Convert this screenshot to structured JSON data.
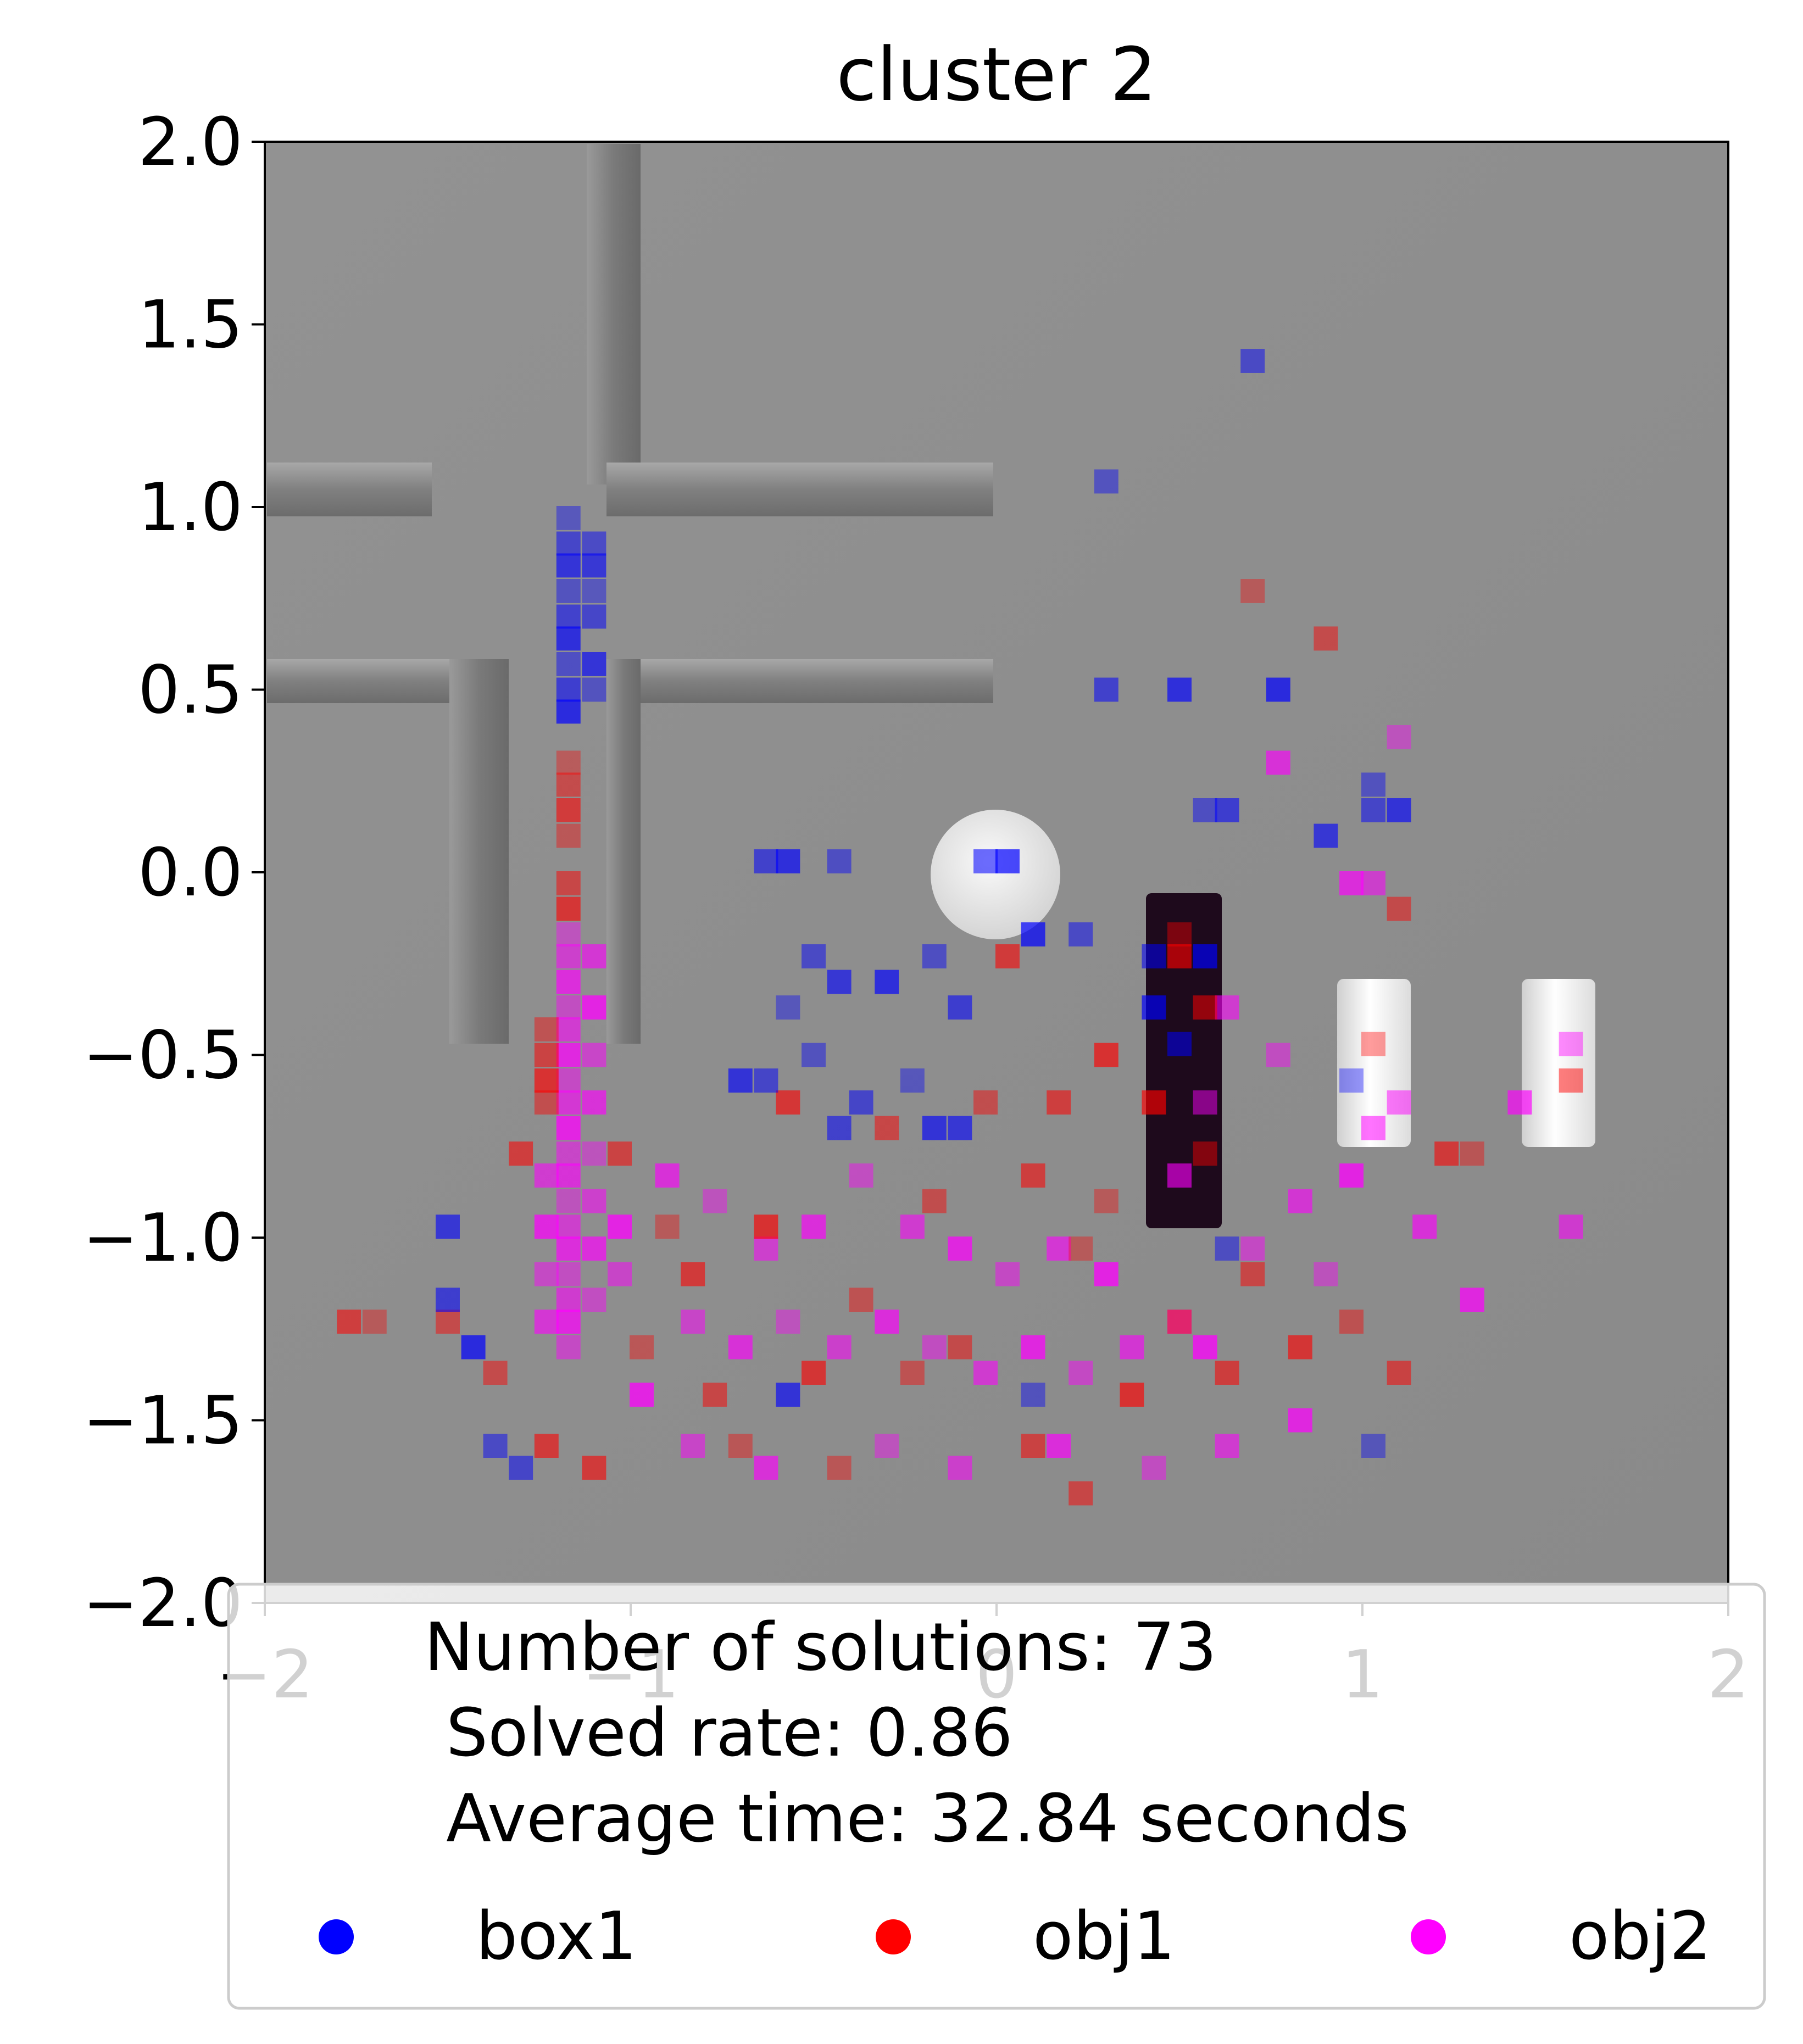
{
  "chart_data": {
    "type": "heatmap",
    "title": "cluster 2",
    "xlabel": "",
    "ylabel": "",
    "xlim": [
      -2,
      2
    ],
    "ylim": [
      -2,
      2
    ],
    "x_ticks": [
      "−2",
      "−1",
      "0",
      "1",
      "2"
    ],
    "y_ticks": [
      "2.0",
      "1.5",
      "1.0",
      "0.5",
      "0.0",
      "−0.5",
      "−1.0",
      "−1.5",
      "−2.0"
    ],
    "x_tick_values": [
      -2,
      -1,
      0,
      1,
      2
    ],
    "y_tick_values": [
      2.0,
      1.5,
      1.0,
      0.5,
      0.0,
      -0.5,
      -1.0,
      -1.5,
      -2.0
    ],
    "grid": false,
    "legend_position": "bottom",
    "summary": {
      "solutions": "Number of solutions: 73",
      "rate": "Solved rate: 0.86",
      "time": "Average time: 32.84 seconds"
    },
    "series": [
      {
        "name": "box1",
        "color": "#0000ff"
      },
      {
        "name": "obj1",
        "color": "#ff0000"
      },
      {
        "name": "obj2",
        "color": "#ff00ff"
      }
    ],
    "heatmap_cell_size": 0.066,
    "box1_cells": [
      [
        -1.17,
        0.97
      ],
      [
        -1.17,
        0.9
      ],
      [
        -1.17,
        0.84
      ],
      [
        -1.17,
        0.77
      ],
      [
        -1.17,
        0.7
      ],
      [
        -1.17,
        0.64
      ],
      [
        -1.17,
        0.57
      ],
      [
        -1.17,
        0.5
      ],
      [
        -1.17,
        0.44
      ],
      [
        -1.1,
        0.9
      ],
      [
        -1.1,
        0.84
      ],
      [
        -1.1,
        0.77
      ],
      [
        -1.1,
        0.7
      ],
      [
        -1.1,
        0.57
      ],
      [
        -1.1,
        0.5
      ],
      [
        -0.63,
        0.03
      ],
      [
        -0.57,
        0.03
      ],
      [
        -0.43,
        0.03
      ],
      [
        -0.03,
        0.03
      ],
      [
        0.03,
        0.03
      ],
      [
        -0.5,
        -0.23
      ],
      [
        -0.43,
        -0.3
      ],
      [
        -0.57,
        -0.37
      ],
      [
        -0.63,
        -0.57
      ],
      [
        -0.7,
        -0.57
      ],
      [
        -0.5,
        -0.5
      ],
      [
        -0.43,
        -0.7
      ],
      [
        -0.3,
        -0.3
      ],
      [
        -0.17,
        -0.23
      ],
      [
        -0.1,
        -0.37
      ],
      [
        0.1,
        -0.17
      ],
      [
        0.23,
        -0.17
      ],
      [
        -0.1,
        -0.7
      ],
      [
        -0.23,
        -0.57
      ],
      [
        -0.37,
        -0.63
      ],
      [
        -0.17,
        -0.7
      ],
      [
        0.3,
        1.07
      ],
      [
        0.3,
        0.5
      ],
      [
        0.5,
        0.5
      ],
      [
        0.57,
        0.17
      ],
      [
        0.63,
        0.17
      ],
      [
        0.77,
        0.5
      ],
      [
        0.7,
        1.4
      ],
      [
        0.9,
        0.1
      ],
      [
        0.97,
        -0.57
      ],
      [
        1.03,
        0.17
      ],
      [
        1.1,
        0.17
      ],
      [
        1.03,
        0.24
      ],
      [
        0.5,
        -0.47
      ],
      [
        0.43,
        -0.37
      ],
      [
        0.63,
        -1.03
      ],
      [
        -1.5,
        -1.17
      ],
      [
        -1.43,
        -1.3
      ],
      [
        -1.37,
        -1.57
      ],
      [
        -1.5,
        -0.97
      ],
      [
        1.03,
        -1.57
      ],
      [
        -1.3,
        -1.63
      ],
      [
        -0.57,
        -1.43
      ],
      [
        0.1,
        -1.43
      ],
      [
        0.43,
        -0.23
      ],
      [
        0.57,
        -0.23
      ]
    ],
    "obj1_cells": [
      [
        -1.17,
        0.3
      ],
      [
        -1.17,
        0.24
      ],
      [
        -1.17,
        0.17
      ],
      [
        -1.17,
        0.1
      ],
      [
        -1.17,
        -0.03
      ],
      [
        -1.17,
        -0.1
      ],
      [
        -1.23,
        -0.43
      ],
      [
        -1.23,
        -0.5
      ],
      [
        -1.23,
        -0.57
      ],
      [
        -1.23,
        -0.63
      ],
      [
        -1.3,
        -0.77
      ],
      [
        0.7,
        0.77
      ],
      [
        0.9,
        0.64
      ],
      [
        0.03,
        -0.23
      ],
      [
        1.03,
        -0.47
      ],
      [
        1.57,
        -0.57
      ],
      [
        0.5,
        -0.23
      ],
      [
        0.5,
        -0.17
      ],
      [
        0.57,
        -0.37
      ],
      [
        0.43,
        -0.63
      ],
      [
        0.57,
        -0.77
      ],
      [
        -1.77,
        -1.23
      ],
      [
        -1.7,
        -1.23
      ],
      [
        -1.5,
        -1.23
      ],
      [
        -1.23,
        -1.57
      ],
      [
        -0.7,
        -1.57
      ],
      [
        -0.3,
        -0.7
      ],
      [
        -0.57,
        -0.63
      ],
      [
        -0.37,
        -1.17
      ],
      [
        0.1,
        -1.57
      ],
      [
        0.37,
        -1.43
      ],
      [
        0.5,
        -1.23
      ],
      [
        0.63,
        -1.37
      ],
      [
        0.23,
        -1.03
      ],
      [
        -0.1,
        -1.3
      ],
      [
        -0.83,
        -1.1
      ],
      [
        -0.97,
        -1.3
      ],
      [
        -0.77,
        -1.43
      ],
      [
        -0.5,
        -1.37
      ],
      [
        -0.23,
        -1.37
      ],
      [
        -1.03,
        -0.77
      ],
      [
        -0.63,
        -0.97
      ],
      [
        -0.17,
        -0.9
      ],
      [
        0.1,
        -0.83
      ],
      [
        0.3,
        -0.9
      ],
      [
        1.1,
        -0.1
      ],
      [
        1.23,
        -0.77
      ],
      [
        1.3,
        -0.77
      ],
      [
        0.7,
        -1.1
      ],
      [
        0.83,
        -1.3
      ],
      [
        0.97,
        -1.23
      ],
      [
        1.1,
        -1.37
      ],
      [
        0.3,
        -0.5
      ],
      [
        -0.03,
        -0.63
      ],
      [
        0.17,
        -0.63
      ],
      [
        -0.9,
        -0.97
      ],
      [
        -1.37,
        -1.37
      ],
      [
        -1.1,
        -1.63
      ],
      [
        -0.43,
        -1.63
      ],
      [
        0.23,
        -1.7
      ]
    ],
    "obj2_cells": [
      [
        -1.17,
        -0.17
      ],
      [
        -1.17,
        -0.23
      ],
      [
        -1.17,
        -0.3
      ],
      [
        -1.17,
        -0.37
      ],
      [
        -1.17,
        -0.43
      ],
      [
        -1.17,
        -0.5
      ],
      [
        -1.17,
        -0.57
      ],
      [
        -1.17,
        -0.63
      ],
      [
        -1.17,
        -0.7
      ],
      [
        -1.17,
        -0.77
      ],
      [
        -1.17,
        -0.83
      ],
      [
        -1.17,
        -0.9
      ],
      [
        -1.17,
        -0.97
      ],
      [
        -1.17,
        -1.03
      ],
      [
        -1.17,
        -1.1
      ],
      [
        -1.17,
        -1.17
      ],
      [
        -1.17,
        -1.23
      ],
      [
        -1.17,
        -1.3
      ],
      [
        -1.1,
        -0.23
      ],
      [
        -1.1,
        -0.37
      ],
      [
        -1.1,
        -0.5
      ],
      [
        -1.1,
        -0.63
      ],
      [
        -1.1,
        -0.77
      ],
      [
        -1.1,
        -0.9
      ],
      [
        -1.1,
        -1.03
      ],
      [
        -1.1,
        -1.17
      ],
      [
        -1.23,
        -0.83
      ],
      [
        -1.23,
        -0.97
      ],
      [
        -1.23,
        -1.1
      ],
      [
        -1.23,
        -1.23
      ],
      [
        -1.03,
        -0.97
      ],
      [
        -1.03,
        -1.1
      ],
      [
        0.77,
        0.3
      ],
      [
        1.1,
        0.37
      ],
      [
        1.03,
        -0.03
      ],
      [
        0.97,
        -0.03
      ],
      [
        1.57,
        -0.47
      ],
      [
        1.57,
        -0.97
      ],
      [
        1.3,
        -1.17
      ],
      [
        0.57,
        -0.63
      ],
      [
        0.5,
        -0.83
      ],
      [
        0.57,
        -1.3
      ],
      [
        0.5,
        -1.23
      ],
      [
        -0.9,
        -0.83
      ],
      [
        -0.77,
        -0.9
      ],
      [
        -0.63,
        -1.03
      ],
      [
        -0.5,
        -0.97
      ],
      [
        -0.37,
        -0.83
      ],
      [
        -0.23,
        -0.97
      ],
      [
        -0.1,
        -1.03
      ],
      [
        0.03,
        -1.1
      ],
      [
        0.17,
        -1.03
      ],
      [
        0.3,
        -1.1
      ],
      [
        -0.83,
        -1.23
      ],
      [
        -0.7,
        -1.3
      ],
      [
        -0.57,
        -1.23
      ],
      [
        -0.43,
        -1.3
      ],
      [
        -0.3,
        -1.23
      ],
      [
        -0.17,
        -1.3
      ],
      [
        -0.03,
        -1.37
      ],
      [
        0.1,
        -1.3
      ],
      [
        0.23,
        -1.37
      ],
      [
        0.37,
        -1.3
      ],
      [
        -0.97,
        -1.43
      ],
      [
        -0.83,
        -1.57
      ],
      [
        -0.63,
        -1.63
      ],
      [
        -0.3,
        -1.57
      ],
      [
        -0.1,
        -1.63
      ],
      [
        0.17,
        -1.57
      ],
      [
        0.43,
        -1.63
      ],
      [
        0.63,
        -1.57
      ],
      [
        0.83,
        -1.5
      ],
      [
        0.7,
        -1.03
      ],
      [
        0.83,
        -0.9
      ],
      [
        0.97,
        -0.83
      ],
      [
        1.1,
        -0.63
      ],
      [
        1.17,
        -0.97
      ],
      [
        0.9,
        -1.1
      ],
      [
        1.03,
        -0.7
      ],
      [
        1.43,
        -0.63
      ],
      [
        0.77,
        -0.5
      ],
      [
        0.63,
        -0.37
      ]
    ]
  }
}
